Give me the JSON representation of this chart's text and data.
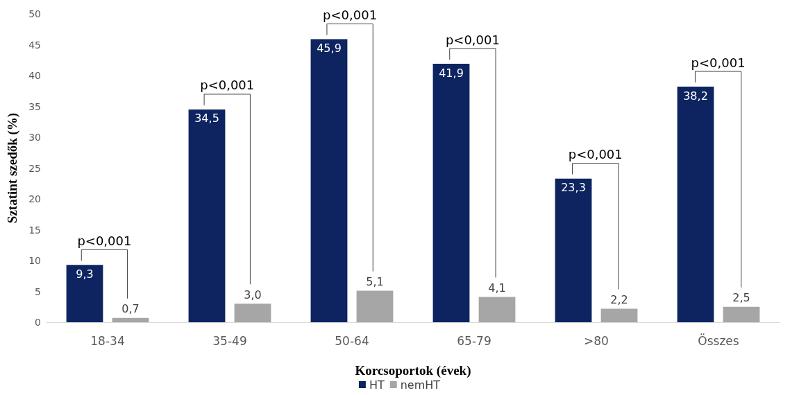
{
  "chart_data": {
    "type": "bar",
    "xlabel": "Korcsoportok (évek)",
    "ylabel": "Sztatint szedők (%)",
    "categories": [
      "18-34",
      "35-49",
      "50-64",
      "65-79",
      ">80",
      "Összes"
    ],
    "series": [
      {
        "name": "HT",
        "color": "#0d2460",
        "values": [
          9.3,
          34.5,
          45.9,
          41.9,
          23.3,
          38.2
        ],
        "value_labels": [
          "9,3",
          "34,5",
          "45,9",
          "41,9",
          "23,3",
          "38,2"
        ]
      },
      {
        "name": "nemHT",
        "color": "#a6a6a6",
        "values": [
          0.7,
          3.0,
          5.1,
          4.1,
          2.2,
          2.5
        ],
        "value_labels": [
          "0,7",
          "3,0",
          "5,1",
          "4,1",
          "2,2",
          "2,5"
        ]
      }
    ],
    "annotations": [
      "p<0,001",
      "p<0,001",
      "p<0,001",
      "p<0,001",
      "p<0,001",
      "p<0,001"
    ],
    "ylim": [
      0,
      50
    ],
    "yticks": [
      0,
      5,
      10,
      15,
      20,
      25,
      30,
      35,
      40,
      45,
      50
    ],
    "grid": false,
    "legend": "bottom"
  }
}
